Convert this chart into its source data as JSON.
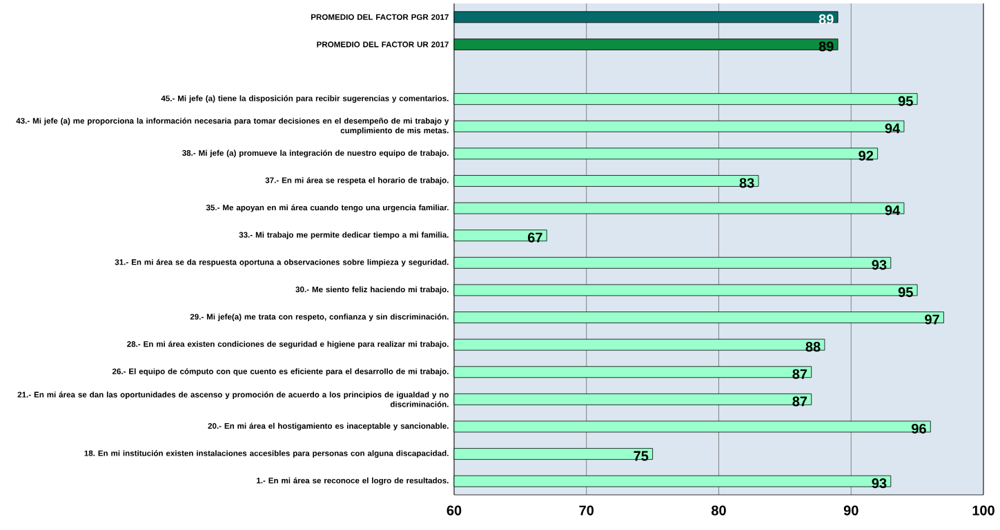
{
  "chart_data": {
    "type": "bar",
    "orientation": "horizontal",
    "categories": [
      "PROMEDIO DEL FACTOR PGR 2017",
      "PROMEDIO DEL FACTOR UR 2017",
      null,
      "45.- Mi jefe (a) tiene la disposición para recibir sugerencias y comentarios.",
      "43.- Mi jefe (a) me proporciona la información necesaria para tomar decisiones en el desempeño de mi trabajo y cumplimiento de mis metas.",
      "38.- Mi jefe (a) promueve la integración de nuestro equipo de trabajo.",
      "37.- En mi área se respeta el horario de trabajo.",
      "35.- Me apoyan en mi área cuando tengo una urgencia familiar.",
      "33.- Mi trabajo me permite dedicar tiempo a mi familia.",
      "31.- En mi área se da respuesta oportuna a observaciones sobre limpieza y seguridad.",
      "30.- Me siento feliz haciendo mi trabajo.",
      "29.- Mi jefe(a) me trata con respeto, confianza y sin discriminación.",
      "28.- En mi área existen condiciones de seguridad e higiene para realizar mi trabajo.",
      "26.- El equipo de cómputo con que cuento es eficiente para el desarrollo de mi trabajo.",
      "21.- En mi área se dan las oportunidades de ascenso y promoción de acuerdo a los principios de igualdad y no discriminación.",
      "20.- En mi área el hostigamiento es inaceptable y sancionable.",
      "18. En mi institución existen instalaciones accesibles para personas con alguna discapacidad.",
      "1.- En mi área se reconoce el logro de resultados."
    ],
    "values": [
      89,
      89,
      null,
      95,
      94,
      92,
      83,
      94,
      67,
      93,
      95,
      97,
      88,
      87,
      87,
      96,
      75,
      93
    ],
    "colors": [
      "#046a6a",
      "#0b8c40",
      "#99ffcc",
      "#99ffcc",
      "#99ffcc",
      "#99ffcc",
      "#99ffcc",
      "#99ffcc",
      "#99ffcc",
      "#99ffcc",
      "#99ffcc",
      "#99ffcc",
      "#99ffcc",
      "#99ffcc",
      "#99ffcc",
      "#99ffcc",
      "#99ffcc",
      "#99ffcc"
    ],
    "xlim": [
      60,
      100
    ],
    "xticks": [
      60,
      70,
      80,
      90,
      100
    ],
    "grid": "x",
    "data_labels": true
  }
}
